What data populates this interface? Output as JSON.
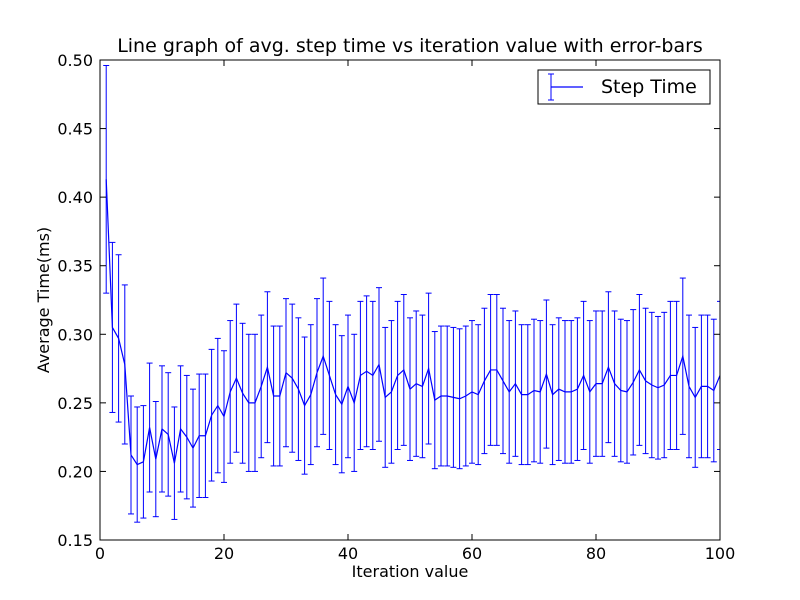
{
  "chart_data": {
    "type": "line",
    "title": "Line graph of avg. step time vs iteration value with error-bars",
    "xlabel": "Iteration value",
    "ylabel": "Average Time(ms)",
    "xlim": [
      0,
      100
    ],
    "ylim": [
      0.15,
      0.5
    ],
    "xticks": [
      "0",
      "20",
      "40",
      "60",
      "80",
      "100"
    ],
    "yticks": [
      "0.15",
      "0.20",
      "0.25",
      "0.30",
      "0.35",
      "0.40",
      "0.45",
      "0.50"
    ],
    "grid": false,
    "legend_position": "top-right",
    "series": [
      {
        "name": "Step Time",
        "color": "#0000ff",
        "x": [
          1,
          2,
          3,
          4,
          5,
          6,
          7,
          8,
          9,
          10,
          11,
          12,
          13,
          14,
          15,
          16,
          17,
          18,
          19,
          20,
          21,
          22,
          23,
          24,
          25,
          26,
          27,
          28,
          29,
          30,
          31,
          32,
          33,
          34,
          35,
          36,
          37,
          38,
          39,
          40,
          41,
          42,
          43,
          44,
          45,
          46,
          47,
          48,
          49,
          50,
          51,
          52,
          53,
          54,
          55,
          56,
          57,
          58,
          59,
          60,
          61,
          62,
          63,
          64,
          65,
          66,
          67,
          68,
          69,
          70,
          71,
          72,
          73,
          74,
          75,
          76,
          77,
          78,
          79,
          80,
          81,
          82,
          83,
          84,
          85,
          86,
          87,
          88,
          89,
          90,
          91,
          92,
          93,
          94,
          95,
          96,
          97,
          98,
          99,
          100
        ],
        "y": [
          0.413,
          0.305,
          0.297,
          0.278,
          0.212,
          0.205,
          0.207,
          0.232,
          0.209,
          0.231,
          0.227,
          0.206,
          0.231,
          0.225,
          0.217,
          0.226,
          0.226,
          0.241,
          0.248,
          0.24,
          0.258,
          0.268,
          0.257,
          0.25,
          0.25,
          0.262,
          0.276,
          0.255,
          0.255,
          0.272,
          0.268,
          0.26,
          0.248,
          0.256,
          0.272,
          0.284,
          0.27,
          0.256,
          0.249,
          0.262,
          0.25,
          0.27,
          0.273,
          0.27,
          0.278,
          0.254,
          0.258,
          0.27,
          0.274,
          0.26,
          0.264,
          0.262,
          0.275,
          0.252,
          0.255,
          0.255,
          0.254,
          0.253,
          0.255,
          0.258,
          0.256,
          0.266,
          0.274,
          0.274,
          0.266,
          0.258,
          0.264,
          0.256,
          0.256,
          0.259,
          0.258,
          0.271,
          0.256,
          0.26,
          0.258,
          0.258,
          0.26,
          0.27,
          0.258,
          0.264,
          0.264,
          0.276,
          0.264,
          0.259,
          0.258,
          0.265,
          0.274,
          0.266,
          0.263,
          0.261,
          0.263,
          0.27,
          0.27,
          0.284,
          0.262,
          0.254,
          0.262,
          0.262,
          0.259,
          0.27
        ],
        "err": [
          0.083,
          0.062,
          0.061,
          0.058,
          0.043,
          0.042,
          0.041,
          0.047,
          0.042,
          0.046,
          0.045,
          0.041,
          0.046,
          0.045,
          0.043,
          0.045,
          0.045,
          0.048,
          0.049,
          0.048,
          0.052,
          0.054,
          0.051,
          0.05,
          0.05,
          0.052,
          0.055,
          0.051,
          0.051,
          0.054,
          0.054,
          0.052,
          0.05,
          0.051,
          0.054,
          0.057,
          0.054,
          0.051,
          0.05,
          0.052,
          0.05,
          0.054,
          0.055,
          0.054,
          0.056,
          0.051,
          0.052,
          0.054,
          0.055,
          0.052,
          0.053,
          0.052,
          0.055,
          0.05,
          0.051,
          0.051,
          0.051,
          0.051,
          0.051,
          0.052,
          0.051,
          0.053,
          0.055,
          0.055,
          0.053,
          0.052,
          0.053,
          0.051,
          0.051,
          0.052,
          0.052,
          0.054,
          0.051,
          0.052,
          0.052,
          0.052,
          0.052,
          0.054,
          0.052,
          0.053,
          0.053,
          0.055,
          0.053,
          0.052,
          0.052,
          0.053,
          0.055,
          0.053,
          0.053,
          0.052,
          0.053,
          0.054,
          0.054,
          0.057,
          0.052,
          0.051,
          0.052,
          0.052,
          0.052,
          0.054
        ]
      }
    ]
  }
}
